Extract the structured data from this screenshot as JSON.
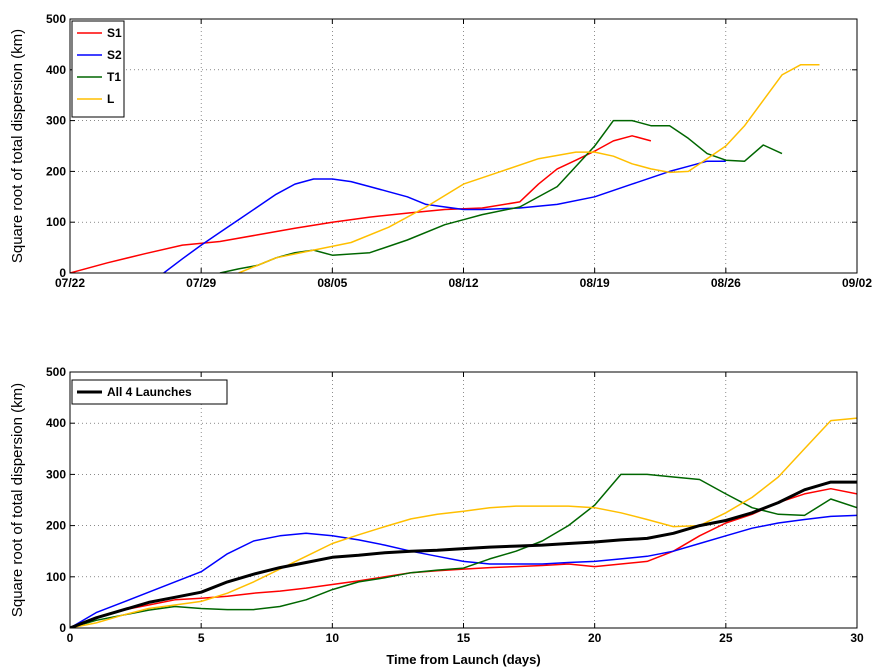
{
  "chart_data": [
    {
      "type": "line",
      "title": "",
      "xlabel": "",
      "ylabel": "Square root of total dispersion (km)",
      "x_type": "date",
      "xlim": [
        "07/22",
        "09/02"
      ],
      "ylim": [
        0,
        500
      ],
      "xticks": [
        "07/22",
        "07/29",
        "08/05",
        "08/12",
        "08/19",
        "08/26",
        "09/02"
      ],
      "yticks": [
        0,
        100,
        200,
        300,
        400,
        500
      ],
      "grid": true,
      "legend_position": "top-left",
      "series": [
        {
          "name": "S1",
          "color": "#ff0000",
          "x": [
            "07/22",
            "07/24",
            "07/26",
            "07/28",
            "07/30",
            "08/01",
            "08/03",
            "08/05",
            "08/07",
            "08/09",
            "08/11",
            "08/13",
            "08/15",
            "08/16",
            "08/17",
            "08/18",
            "08/19",
            "08/20",
            "08/21",
            "08/22"
          ],
          "y": [
            0,
            20,
            38,
            55,
            62,
            75,
            88,
            100,
            110,
            118,
            125,
            128,
            140,
            175,
            205,
            222,
            240,
            260,
            270,
            260
          ]
        },
        {
          "name": "S2",
          "color": "#0000ff",
          "x": [
            "07/27",
            "07/28",
            "07/29",
            "07/30",
            "07/31",
            "08/01",
            "08/02",
            "08/03",
            "08/04",
            "08/05",
            "08/06",
            "08/07",
            "08/08",
            "08/09",
            "08/10",
            "08/12",
            "08/13",
            "08/15",
            "08/17",
            "08/19",
            "08/21",
            "08/23",
            "08/24",
            "08/25",
            "08/26"
          ],
          "y": [
            0,
            28,
            55,
            80,
            105,
            130,
            155,
            175,
            185,
            185,
            180,
            170,
            160,
            150,
            135,
            125,
            125,
            128,
            135,
            150,
            175,
            200,
            210,
            220,
            220
          ]
        },
        {
          "name": "T1",
          "color": "#006600",
          "x": [
            "07/30",
            "07/31",
            "08/01",
            "08/02",
            "08/03",
            "08/04",
            "08/05",
            "08/07",
            "08/09",
            "08/11",
            "08/12",
            "08/13",
            "08/15",
            "08/17",
            "08/19",
            "08/20",
            "08/21",
            "08/22",
            "08/23",
            "08/24",
            "08/25",
            "08/26",
            "08/27",
            "08/28",
            "08/29"
          ],
          "y": [
            0,
            8,
            15,
            30,
            40,
            45,
            35,
            40,
            65,
            95,
            105,
            115,
            130,
            170,
            250,
            300,
            300,
            290,
            290,
            265,
            235,
            222,
            220,
            252,
            235
          ]
        },
        {
          "name": "L",
          "color": "#ffbf00",
          "x": [
            "07/31",
            "08/02",
            "08/04",
            "08/06",
            "08/08",
            "08/10",
            "08/12",
            "08/14",
            "08/16",
            "08/18",
            "08/19",
            "08/20",
            "08/21",
            "08/22",
            "08/23",
            "08/24",
            "08/25",
            "08/26",
            "08/27",
            "08/28",
            "08/29",
            "08/30",
            "08/31"
          ],
          "y": [
            0,
            30,
            45,
            60,
            90,
            130,
            175,
            200,
            225,
            238,
            238,
            230,
            215,
            205,
            198,
            200,
            225,
            250,
            290,
            340,
            390,
            410,
            410
          ]
        }
      ]
    },
    {
      "type": "line",
      "title": "",
      "xlabel": "Time from Launch (days)",
      "ylabel": "Square root of total dispersion (km)",
      "xlim": [
        0,
        30
      ],
      "ylim": [
        0,
        500
      ],
      "xticks": [
        0,
        5,
        10,
        15,
        20,
        25,
        30
      ],
      "yticks": [
        0,
        100,
        200,
        300,
        400,
        500
      ],
      "grid": true,
      "legend_position": "top-left",
      "legend": [
        "All 4 Launches"
      ],
      "series": [
        {
          "name": "",
          "color": "#ff0000",
          "x": [
            0,
            1,
            2,
            3,
            4,
            5,
            6,
            7,
            8,
            9,
            10,
            11,
            12,
            13,
            14,
            15,
            16,
            17,
            18,
            19,
            20,
            21,
            22,
            23,
            24,
            25,
            26,
            27,
            28,
            29,
            30
          ],
          "y": [
            0,
            20,
            35,
            45,
            55,
            58,
            62,
            68,
            72,
            78,
            85,
            92,
            100,
            108,
            112,
            115,
            118,
            120,
            122,
            125,
            120,
            125,
            130,
            150,
            180,
            205,
            222,
            245,
            262,
            272,
            262
          ]
        },
        {
          "name": "",
          "color": "#0000ff",
          "x": [
            0,
            1,
            2,
            3,
            4,
            5,
            6,
            7,
            8,
            9,
            10,
            11,
            12,
            13,
            14,
            15,
            16,
            17,
            18,
            19,
            20,
            21,
            22,
            23,
            24,
            25,
            26,
            27,
            28,
            29,
            30
          ],
          "y": [
            0,
            30,
            50,
            70,
            90,
            110,
            145,
            170,
            180,
            185,
            180,
            172,
            162,
            150,
            140,
            130,
            125,
            125,
            125,
            128,
            130,
            135,
            140,
            150,
            165,
            180,
            195,
            205,
            212,
            218,
            220
          ]
        },
        {
          "name": "",
          "color": "#006600",
          "x": [
            0,
            1,
            2,
            3,
            4,
            5,
            6,
            7,
            8,
            9,
            10,
            11,
            12,
            13,
            14,
            15,
            16,
            17,
            18,
            19,
            20,
            21,
            22,
            23,
            24,
            25,
            26,
            27,
            28,
            29,
            30
          ],
          "y": [
            0,
            15,
            25,
            35,
            42,
            38,
            36,
            36,
            42,
            55,
            75,
            90,
            98,
            108,
            113,
            117,
            135,
            150,
            170,
            200,
            240,
            300,
            300,
            295,
            290,
            262,
            235,
            222,
            220,
            252,
            235
          ]
        },
        {
          "name": "",
          "color": "#ffbf00",
          "x": [
            0,
            1,
            2,
            3,
            4,
            5,
            6,
            7,
            8,
            9,
            10,
            11,
            12,
            13,
            14,
            15,
            16,
            17,
            18,
            19,
            20,
            21,
            22,
            23,
            24,
            25,
            26,
            27,
            28,
            29,
            30
          ],
          "y": [
            0,
            10,
            25,
            38,
            45,
            52,
            68,
            90,
            115,
            140,
            165,
            182,
            198,
            213,
            222,
            228,
            235,
            238,
            238,
            238,
            235,
            225,
            212,
            198,
            200,
            225,
            255,
            295,
            350,
            405,
            410
          ]
        },
        {
          "name": "All 4 Launches",
          "color": "#000000",
          "x": [
            0,
            1,
            2,
            3,
            4,
            5,
            6,
            7,
            8,
            9,
            10,
            11,
            12,
            13,
            14,
            15,
            16,
            17,
            18,
            19,
            20,
            21,
            22,
            23,
            24,
            25,
            26,
            27,
            28,
            29,
            30
          ],
          "y": [
            0,
            20,
            35,
            50,
            60,
            70,
            90,
            105,
            118,
            128,
            138,
            142,
            147,
            150,
            152,
            155,
            158,
            160,
            162,
            165,
            168,
            172,
            175,
            185,
            200,
            210,
            225,
            245,
            270,
            285,
            285
          ]
        }
      ]
    }
  ]
}
